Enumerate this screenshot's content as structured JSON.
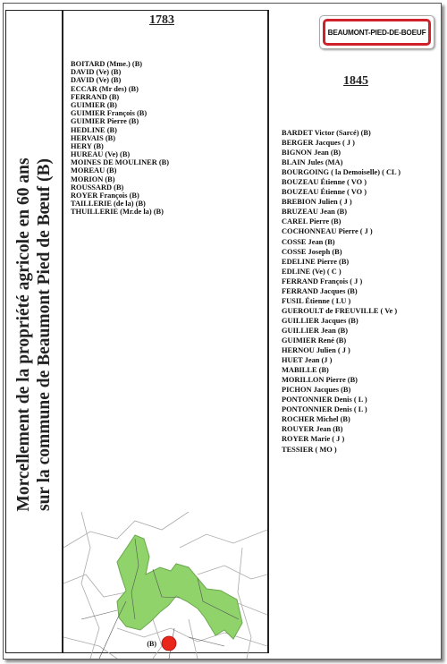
{
  "title": {
    "line1": "Morcellement de la propriété agricole en 60 ans",
    "line2": "sur la commune de Beaumont Pied de Bœuf (B)"
  },
  "sign": "BEAUMONT-PIED-DE-BOEUF",
  "column_1783": {
    "year": "1783",
    "names": [
      "BOITARD (Mme.) (B)",
      "DAVID (Ve) (B)",
      "DAVID (Ve) (B)",
      "ECCAR (Mr des) (B)",
      "FERRAND (B)",
      "GUIMIER (B)",
      "GUIMIER François (B)",
      "GUIMIER Pierre (B)",
      "HEDLINE (B)",
      "HERVAIS (B)",
      "HERY (B)",
      "HUREAU (Ve) (B)",
      "MOINES DE MOULINER (B)",
      "MOREAU (B)",
      "MORION (B)",
      "ROUSSARD (B)",
      "ROYER François (B)",
      "TAILLERIE (de la) (B)",
      "THUILLERIE (Mr.de la) (B)"
    ]
  },
  "column_1845": {
    "year": "1845",
    "names": [
      "BARDET Victor (Sarcé) (B)",
      "BERGER Jacques ( J )",
      "BIGNON Jean (B)",
      "BLAIN Jules (MA)",
      "BOURGOING ( la Demoiselle) ( CL )",
      "BOUZEAU Étienne ( VO )",
      "BOUZEAU Étienne ( VO )",
      "BREBION Julien ( J )",
      "BRUZEAU Jean (B)",
      "CAREL Pierre (B)",
      "COCHONNEAU Pierre ( J )",
      "COSSE Jean (B)",
      "COSSE Joseph (B)",
      "EDELINE Pierre (B)",
      "EDLINE (Ve) ( C )",
      "FERRAND François ( J )",
      "FERRAND Jacques (B)",
      "FUSIL Étienne ( LU )",
      "GUEROULT de FREUVILLE ( Ve )",
      "GUILLIER Jacques (B)",
      "GUILLIER Jean (B)",
      "GUIMIER René (B)",
      "HERNOU Julien ( J )",
      "HUET Jean (J )",
      "MABILLE (B)",
      "MORILLON Pierre (B)",
      "PICHON Jacques (B)",
      "PONTONNIER Denis ( L )",
      "PONTONNIER Denis ( L )",
      "ROCHER Michel (B)",
      "ROUYER Jean (B)",
      "ROYER Marie ( J )",
      "TESSIER ( MO )"
    ]
  },
  "map": {
    "label": "(B)"
  }
}
